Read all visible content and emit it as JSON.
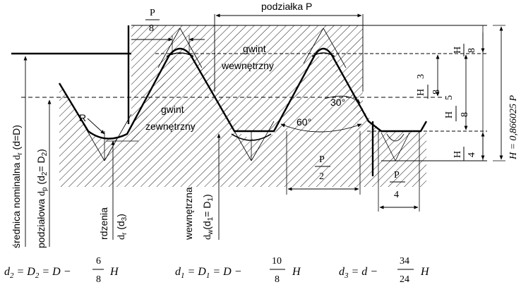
{
  "labels": {
    "pitch": "podziałka P",
    "internal_thread_1": "gwint",
    "internal_thread_2": "wewnętrzny",
    "external_thread_1": "gwint",
    "external_thread_2": "zewnętrzny",
    "angle_30": "30°",
    "angle_60": "60°",
    "radius": "R",
    "nominal_diameter_text": "średnica nominalna",
    "nominal_diameter_sym": "d",
    "nominal_diameter_sub": "r",
    "nominal_diameter_eq": "(d=D)",
    "pitch_diameter_text": "podziałowa",
    "pitch_diameter_sym": "d",
    "pitch_diameter_sub": "p",
    "pitch_diameter_eq": "(d",
    "pitch_diameter_eq_sub": "2",
    "pitch_diameter_eq_mid": "= D",
    "pitch_diameter_eq_sub2": "2",
    "pitch_diameter_eq_end": ")",
    "core_diameter_text": "rdzenia",
    "core_diameter_sym": "d",
    "core_diameter_sub": "r",
    "core_diameter_eq": "(d",
    "core_diameter_eq_sub": "3",
    "core_diameter_eq_end": ")",
    "inner_diameter_text": "wewnętrzna",
    "inner_diameter_sym": "d",
    "inner_diameter_sub": "w",
    "inner_diameter_eq": "(d",
    "inner_diameter_eq_sub": "1",
    "inner_diameter_eq_mid": "= D",
    "inner_diameter_eq_sub2": "1",
    "inner_diameter_eq_end": ")",
    "height_formula": "H = 0,866025 P"
  },
  "fractions": {
    "p8": {
      "num": "P",
      "den": "8"
    },
    "p2": {
      "num": "P",
      "den": "2"
    },
    "p4": {
      "num": "P",
      "den": "4"
    },
    "h8": {
      "num": "H",
      "den": "8"
    },
    "h4": {
      "num": "H",
      "den": "4"
    },
    "h38": {
      "whole": "3",
      "num": "H",
      "den": "8"
    },
    "h58": {
      "whole": "5",
      "num": "H",
      "den": "8"
    }
  },
  "formulas": {
    "f1": {
      "lhs": "d",
      "lhs_sub": "2",
      "eq1": " = D",
      "eq1_sub": "2",
      "eq2": " = D −",
      "num": "6",
      "den": "8",
      "tail": "H"
    },
    "f2": {
      "lhs": "d",
      "lhs_sub": "1",
      "eq1": " = D",
      "eq1_sub": "1",
      "eq2": " = D −",
      "num": "10",
      "den": "8",
      "tail": "H"
    },
    "f3": {
      "lhs": "d",
      "lhs_sub": "3",
      "eq2": " = d −",
      "num": "34",
      "den": "24",
      "tail": "H"
    }
  }
}
